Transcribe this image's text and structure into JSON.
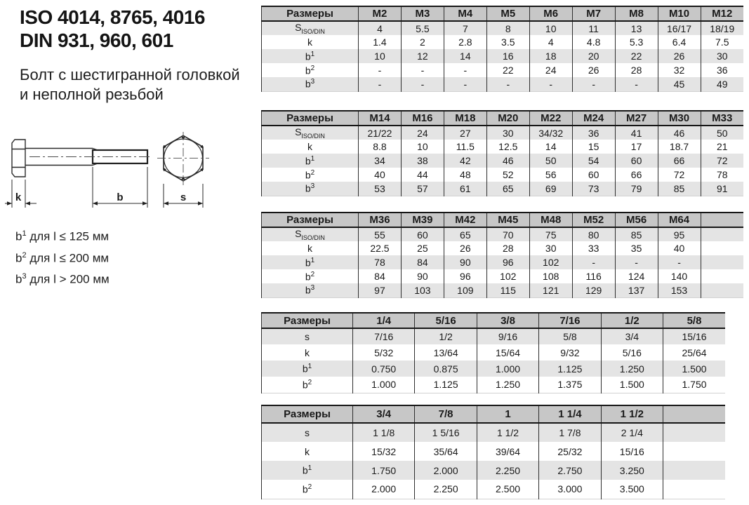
{
  "header": {
    "iso_title": "ISO 4014, 8765, 4016",
    "din_title": "DIN 931, 960, 601",
    "subtitle_line1": "Болт с шестигранной головкой",
    "subtitle_line2": "и неполной резьбой"
  },
  "drawing": {
    "dim_k": "k",
    "dim_b": "b",
    "dim_s": "s"
  },
  "notes": [
    {
      "base": "b",
      "sup": "1",
      "text": " для l ≤ 125 мм"
    },
    {
      "base": "b",
      "sup": "2",
      "text": " для l ≤ 200 мм"
    },
    {
      "base": "b",
      "sup": "3",
      "text": " для l > 200 мм"
    }
  ],
  "tables": [
    {
      "name": "metric-m2-m12",
      "header": [
        "Размеры",
        "M2",
        "M3",
        "M4",
        "M5",
        "M6",
        "M7",
        "M8",
        "M10",
        "M12"
      ],
      "rows": [
        {
          "label": {
            "base": "S",
            "sub": "ISO/DIN"
          },
          "values": [
            "4",
            "5.5",
            "7",
            "8",
            "10",
            "11",
            "13",
            "16/17",
            "18/19"
          ]
        },
        {
          "label": {
            "base": "k"
          },
          "values": [
            "1.4",
            "2",
            "2.8",
            "3.5",
            "4",
            "4.8",
            "5.3",
            "6.4",
            "7.5"
          ]
        },
        {
          "label": {
            "base": "b",
            "sup": "1"
          },
          "values": [
            "10",
            "12",
            "14",
            "16",
            "18",
            "20",
            "22",
            "26",
            "30"
          ]
        },
        {
          "label": {
            "base": "b",
            "sup": "2"
          },
          "values": [
            "-",
            "-",
            "-",
            "22",
            "24",
            "26",
            "28",
            "32",
            "36"
          ]
        },
        {
          "label": {
            "base": "b",
            "sup": "3"
          },
          "values": [
            "-",
            "-",
            "-",
            "-",
            "-",
            "-",
            "-",
            "45",
            "49"
          ]
        }
      ]
    },
    {
      "name": "metric-m14-m33",
      "header": [
        "Размеры",
        "M14",
        "M16",
        "M18",
        "M20",
        "M22",
        "M24",
        "M27",
        "M30",
        "M33"
      ],
      "rows": [
        {
          "label": {
            "base": "S",
            "sub": "ISO/DIN"
          },
          "values": [
            "21/22",
            "24",
            "27",
            "30",
            "34/32",
            "36",
            "41",
            "46",
            "50"
          ]
        },
        {
          "label": {
            "base": "k"
          },
          "values": [
            "8.8",
            "10",
            "11.5",
            "12.5",
            "14",
            "15",
            "17",
            "18.7",
            "21"
          ]
        },
        {
          "label": {
            "base": "b",
            "sup": "1"
          },
          "values": [
            "34",
            "38",
            "42",
            "46",
            "50",
            "54",
            "60",
            "66",
            "72"
          ]
        },
        {
          "label": {
            "base": "b",
            "sup": "2"
          },
          "values": [
            "40",
            "44",
            "48",
            "52",
            "56",
            "60",
            "66",
            "72",
            "78"
          ]
        },
        {
          "label": {
            "base": "b",
            "sup": "3"
          },
          "values": [
            "53",
            "57",
            "61",
            "65",
            "69",
            "73",
            "79",
            "85",
            "91"
          ]
        }
      ]
    },
    {
      "name": "metric-m36-m64",
      "header": [
        "Размеры",
        "M36",
        "M39",
        "M42",
        "M45",
        "M48",
        "M52",
        "M56",
        "M64",
        ""
      ],
      "rows": [
        {
          "label": {
            "base": "S",
            "sub": "ISO/DIN"
          },
          "values": [
            "55",
            "60",
            "65",
            "70",
            "75",
            "80",
            "85",
            "95",
            ""
          ]
        },
        {
          "label": {
            "base": "k"
          },
          "values": [
            "22.5",
            "25",
            "26",
            "28",
            "30",
            "33",
            "35",
            "40",
            ""
          ]
        },
        {
          "label": {
            "base": "b",
            "sup": "1"
          },
          "values": [
            "78",
            "84",
            "90",
            "96",
            "102",
            "-",
            "-",
            "-",
            ""
          ]
        },
        {
          "label": {
            "base": "b",
            "sup": "2"
          },
          "values": [
            "84",
            "90",
            "96",
            "102",
            "108",
            "116",
            "124",
            "140",
            ""
          ]
        },
        {
          "label": {
            "base": "b",
            "sup": "3"
          },
          "values": [
            "97",
            "103",
            "109",
            "115",
            "121",
            "129",
            "137",
            "153",
            ""
          ]
        }
      ]
    },
    {
      "name": "inch-quarter-to-fiveeighths",
      "header": [
        "Размеры",
        "1/4",
        "5/16",
        "3/8",
        "7/16",
        "1/2",
        "5/8"
      ],
      "rows": [
        {
          "label": {
            "base": "s"
          },
          "values": [
            "7/16",
            "1/2",
            "9/16",
            "5/8",
            "3/4",
            "15/16"
          ]
        },
        {
          "label": {
            "base": "k"
          },
          "values": [
            "5/32",
            "13/64",
            "15/64",
            "9/32",
            "5/16",
            "25/64"
          ]
        },
        {
          "label": {
            "base": "b",
            "sup": "1"
          },
          "values": [
            "0.750",
            "0.875",
            "1.000",
            "1.125",
            "1.250",
            "1.500"
          ]
        },
        {
          "label": {
            "base": "b",
            "sup": "2"
          },
          "values": [
            "1.000",
            "1.125",
            "1.250",
            "1.375",
            "1.500",
            "1.750"
          ]
        }
      ]
    },
    {
      "name": "inch-threequarters-to-oneandhalf",
      "header": [
        "Размеры",
        "3/4",
        "7/8",
        "1",
        "1 1/4",
        "1 1/2",
        ""
      ],
      "rows": [
        {
          "label": {
            "base": "s"
          },
          "values": [
            "1 1/8",
            "1 5/16",
            "1 1/2",
            "1 7/8",
            "2 1/4",
            ""
          ]
        },
        {
          "label": {
            "base": "k"
          },
          "values": [
            "15/32",
            "35/64",
            "39/64",
            "25/32",
            "15/16",
            ""
          ]
        },
        {
          "label": {
            "base": "b",
            "sup": "1"
          },
          "values": [
            "1.750",
            "2.000",
            "2.250",
            "2.750",
            "3.250",
            ""
          ]
        },
        {
          "label": {
            "base": "b",
            "sup": "2"
          },
          "values": [
            "2.000",
            "2.250",
            "2.500",
            "3.000",
            "3.500",
            ""
          ]
        }
      ]
    }
  ]
}
